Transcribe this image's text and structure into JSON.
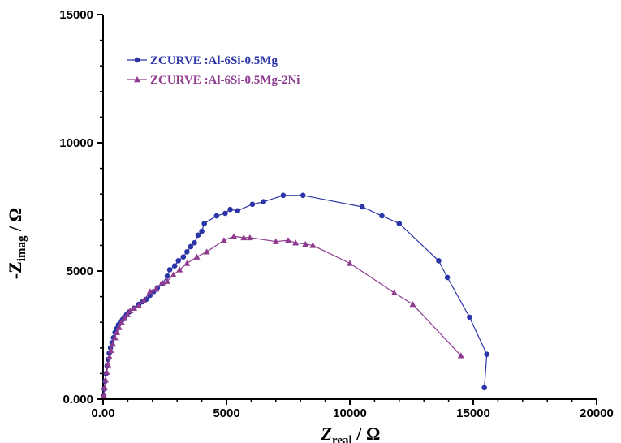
{
  "chart_data": {
    "type": "scatter",
    "xlabel": {
      "main": "Z",
      "sub": "real",
      "unit": " / Ω"
    },
    "ylabel": {
      "prefix": "-Z",
      "sub": "imag",
      "unit": " / Ω"
    },
    "xlim": [
      0,
      20000
    ],
    "ylim": [
      0,
      15000
    ],
    "x_ticks": [
      "0.00",
      "5000",
      "10000",
      "15000",
      "20000"
    ],
    "y_ticks": [
      "0.000",
      "5000",
      "10000",
      "15000"
    ],
    "legend_position": "top-left",
    "series": [
      {
        "name": "ZCURVE :Al-6Si-0.5Mg",
        "color": "#2b35a8",
        "marker": "circle",
        "points": [
          [
            30,
            150
          ],
          [
            50,
            400
          ],
          [
            80,
            700
          ],
          [
            120,
            1000
          ],
          [
            160,
            1300
          ],
          [
            200,
            1550
          ],
          [
            250,
            1800
          ],
          [
            300,
            2000
          ],
          [
            360,
            2200
          ],
          [
            420,
            2400
          ],
          [
            480,
            2600
          ],
          [
            550,
            2750
          ],
          [
            620,
            2900
          ],
          [
            700,
            3000
          ],
          [
            780,
            3100
          ],
          [
            860,
            3200
          ],
          [
            950,
            3300
          ],
          [
            1050,
            3400
          ],
          [
            1250,
            3550
          ],
          [
            1450,
            3700
          ],
          [
            1600,
            3800
          ],
          [
            1750,
            3900
          ],
          [
            1900,
            4050
          ],
          [
            2050,
            4200
          ],
          [
            2200,
            4350
          ],
          [
            2400,
            4500
          ],
          [
            2600,
            4800
          ],
          [
            2700,
            5050
          ],
          [
            2900,
            5200
          ],
          [
            3050,
            5400
          ],
          [
            3250,
            5550
          ],
          [
            3400,
            5750
          ],
          [
            3550,
            5950
          ],
          [
            3700,
            6100
          ],
          [
            3850,
            6400
          ],
          [
            4000,
            6550
          ],
          [
            4100,
            6850
          ],
          [
            4600,
            7150
          ],
          [
            4950,
            7250
          ],
          [
            5150,
            7400
          ],
          [
            5450,
            7350
          ],
          [
            6050,
            7600
          ],
          [
            6500,
            7700
          ],
          [
            7300,
            7950
          ],
          [
            8100,
            7950
          ],
          [
            10500,
            7500
          ],
          [
            11300,
            7150
          ],
          [
            12000,
            6850
          ],
          [
            13600,
            5400
          ],
          [
            13950,
            4750
          ],
          [
            14850,
            3200
          ],
          [
            15550,
            1750
          ],
          [
            15450,
            450
          ]
        ]
      },
      {
        "name": "ZCURVE :Al-6Si-0.5Mg-2Ni",
        "color": "#8e3a8e",
        "marker": "triangle",
        "points": [
          [
            30,
            150
          ],
          [
            60,
            450
          ],
          [
            100,
            750
          ],
          [
            150,
            1050
          ],
          [
            200,
            1350
          ],
          [
            260,
            1650
          ],
          [
            320,
            1900
          ],
          [
            400,
            2150
          ],
          [
            480,
            2400
          ],
          [
            560,
            2600
          ],
          [
            650,
            2800
          ],
          [
            750,
            3000
          ],
          [
            860,
            3150
          ],
          [
            980,
            3300
          ],
          [
            1100,
            3450
          ],
          [
            1250,
            3550
          ],
          [
            1450,
            3650
          ],
          [
            1650,
            3850
          ],
          [
            1900,
            4200
          ],
          [
            2150,
            4300
          ],
          [
            2400,
            4550
          ],
          [
            2600,
            4600
          ],
          [
            2850,
            4850
          ],
          [
            3100,
            5050
          ],
          [
            3400,
            5300
          ],
          [
            3800,
            5550
          ],
          [
            4200,
            5750
          ],
          [
            4900,
            6200
          ],
          [
            5300,
            6350
          ],
          [
            5700,
            6300
          ],
          [
            5950,
            6300
          ],
          [
            7000,
            6150
          ],
          [
            7500,
            6200
          ],
          [
            7800,
            6100
          ],
          [
            8200,
            6050
          ],
          [
            8500,
            6000
          ],
          [
            10000,
            5300
          ],
          [
            11800,
            4150
          ],
          [
            12550,
            3700
          ],
          [
            14500,
            1700
          ]
        ]
      }
    ]
  }
}
